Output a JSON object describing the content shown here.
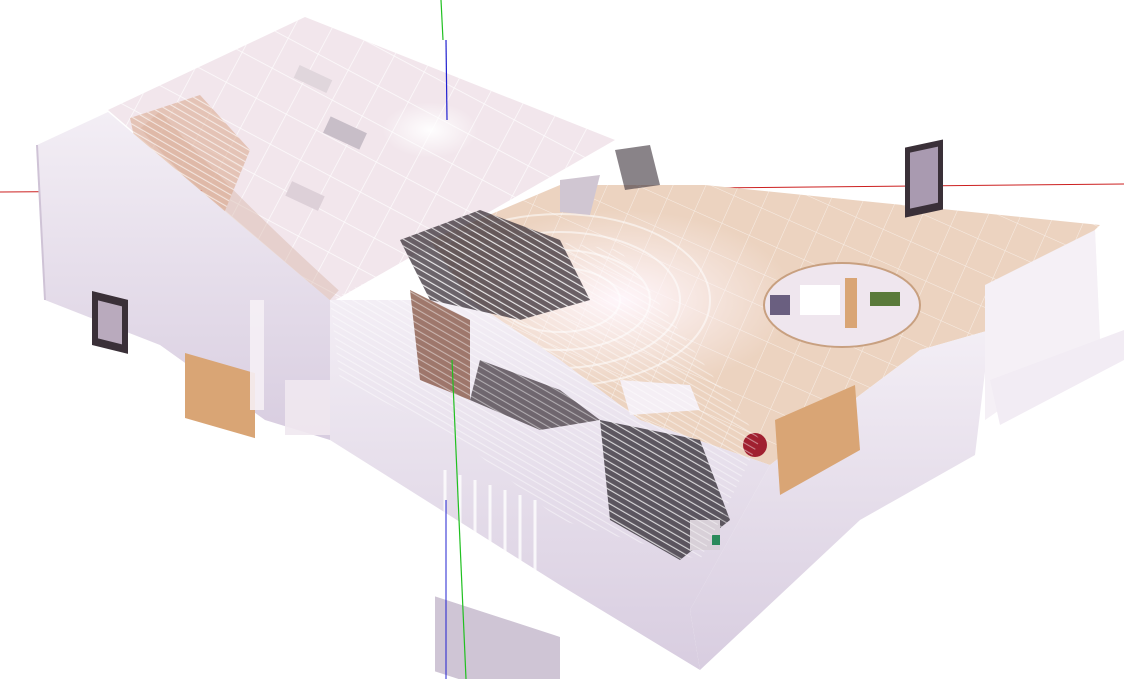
{
  "viewer": {
    "background_color": "#ffffff",
    "axes": {
      "x_axis_color": "#cc2020",
      "y_axis_color": "#20c020",
      "z_axis_color": "#2020d0"
    },
    "scene": {
      "wall_color": "#e6dcec",
      "wall_shadow_color": "#cfc3d6",
      "ceiling_color": "#f2e8ee",
      "ceiling_grid_color": "#ffffff",
      "floor_color": "#ecd3c0",
      "floor_highlight_color": "#fff7f8",
      "wood_color": "#d9a575",
      "dark_object_color": "#3a3038"
    }
  }
}
